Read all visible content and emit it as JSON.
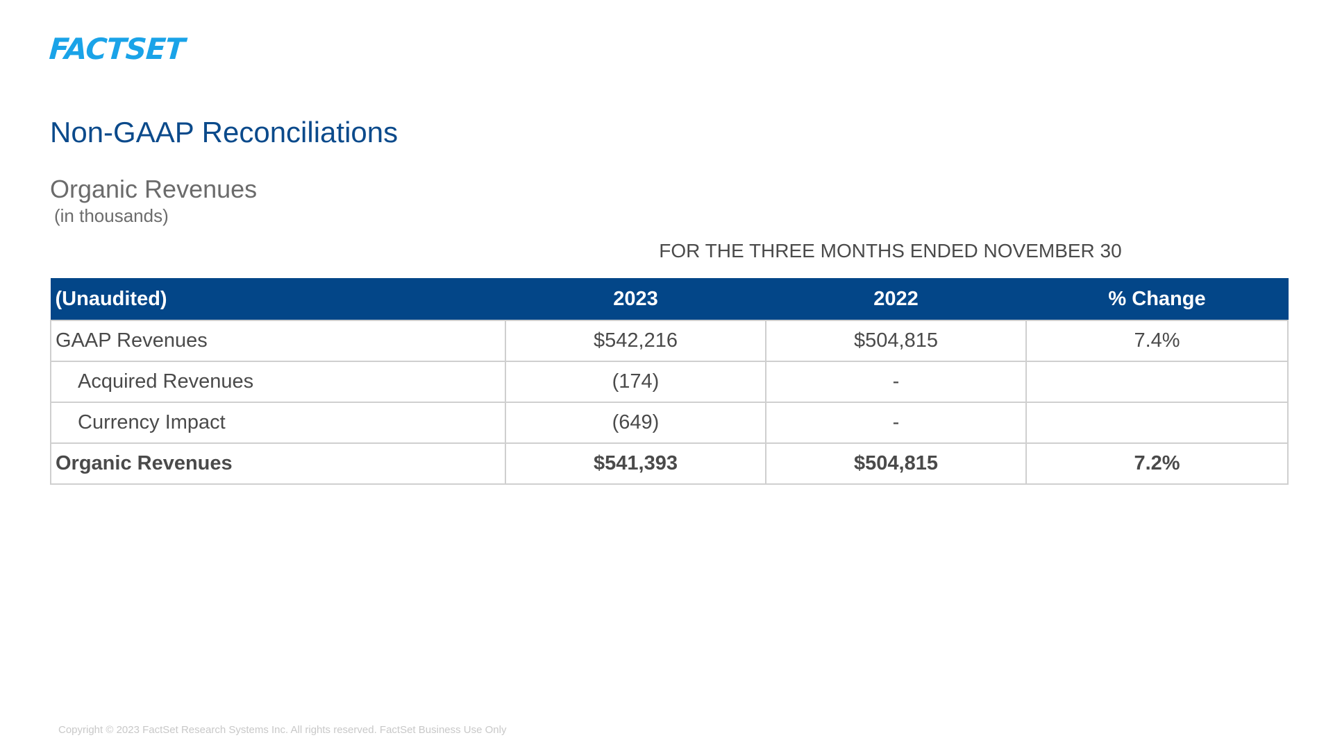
{
  "brand": {
    "logo_text": "FACTSET",
    "color": "#1aa3e8"
  },
  "page_title": "Non-GAAP Reconciliations",
  "subtitle": "Organic Revenues",
  "units": "(in thousands)",
  "period_header": "FOR THE THREE MONTHS ENDED NOVEMBER 30",
  "table": {
    "header_bg": "#034688",
    "columns": [
      "(Unaudited)",
      "2023",
      "2022",
      "% Change"
    ],
    "rows": [
      {
        "label": "GAAP Revenues",
        "y2023": "$542,216",
        "y2022": "$504,815",
        "change": "7.4%"
      },
      {
        "label": "Acquired Revenues",
        "y2023": "(174)",
        "y2022": "-",
        "change": ""
      },
      {
        "label": "Currency Impact",
        "y2023": "(649)",
        "y2022": "-",
        "change": ""
      },
      {
        "label": "Organic Revenues",
        "y2023": "$541,393",
        "y2022": "$504,815",
        "change": "7.2%"
      }
    ]
  },
  "footer": {
    "copyright": "Copyright © 2023 FactSet Research Systems Inc. All rights reserved. FactSet Business Use Only"
  }
}
